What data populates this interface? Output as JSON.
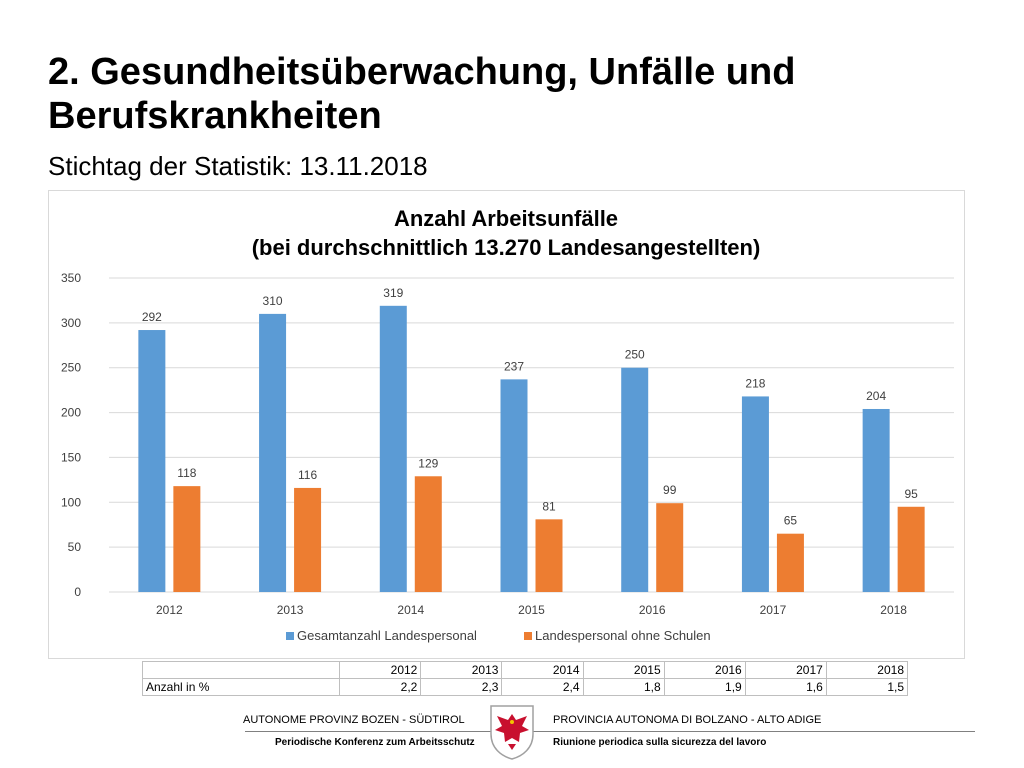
{
  "slide": {
    "title": "2. Gesundheitsüberwachung, Unfälle und Berufskrankheiten",
    "subtitle": "Stichtag der Statistik: 13.11.2018"
  },
  "chart_data": {
    "type": "bar",
    "title": "Anzahl Arbeitsunfälle",
    "subtitle": "(bei durchschnittlich 13.270 Landesangestellten)",
    "categories": [
      "2012",
      "2013",
      "2014",
      "2015",
      "2016",
      "2017",
      "2018"
    ],
    "series": [
      {
        "name": "Gesamtanzahl Landespersonal",
        "values": [
          292,
          310,
          319,
          237,
          250,
          218,
          204
        ],
        "color": "#5b9bd5"
      },
      {
        "name": "Landespersonal ohne Schulen",
        "values": [
          118,
          116,
          129,
          81,
          99,
          65,
          95
        ],
        "color": "#ed7d31"
      }
    ],
    "ylim": [
      0,
      350
    ],
    "yticks": [
      0,
      50,
      100,
      150,
      200,
      250,
      300,
      350
    ],
    "grid": true,
    "legend": "bottom"
  },
  "table": {
    "header": [
      "",
      "2012",
      "2013",
      "2014",
      "2015",
      "2016",
      "2017",
      "2018"
    ],
    "row_label": "Anzahl in %",
    "values": [
      "2,2",
      "2,3",
      "2,4",
      "1,8",
      "1,9",
      "1,6",
      "1,5"
    ]
  },
  "footer": {
    "left_org": "AUTONOME PROVINZ BOZEN - SÜDTIROL",
    "right_org": "PROVINCIA AUTONOMA DI BOLZANO - ALTO ADIGE",
    "left_event": "Periodische Konferenz zum Arbeitsschutz",
    "right_event": "Riunione periodica sulla sicurezza del lavoro",
    "emblem_icon": "eagle-coat-of-arms-icon"
  }
}
